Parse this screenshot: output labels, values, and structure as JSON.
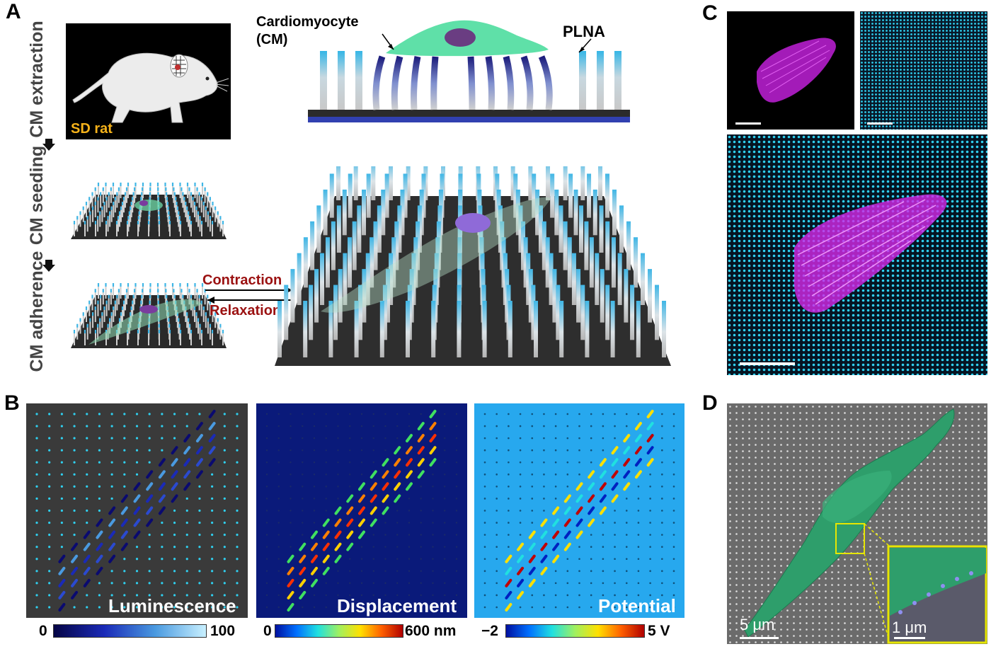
{
  "panels": {
    "a": "A",
    "b": "B",
    "c": "C",
    "d": "D"
  },
  "panel_a": {
    "steps": [
      "CM extraction",
      "CM seeding",
      "CM adherence"
    ],
    "rat_label": "SD rat",
    "cell_label_line1": "Cardiomyocyte",
    "cell_label_line2": "(CM)",
    "plna_label": "PLNA",
    "contraction": "Contraction",
    "relaxation": "Relaxation"
  },
  "panel_b": {
    "maps": [
      {
        "label": "Luminescence",
        "cbar_min": "0",
        "cbar_max": "100"
      },
      {
        "label": "Displacement",
        "cbar_min": "0",
        "cbar_max": "600 nm"
      },
      {
        "label": "Potential",
        "cbar_min": "−2",
        "cbar_max": "5 V"
      }
    ]
  },
  "panel_d": {
    "scale_main": "5 μm",
    "scale_inset": "1 μm"
  },
  "colors": {
    "pillar_top": "#3fb6e6",
    "cell_green": "#5fe0a8",
    "nucleus": "#6a3d82",
    "arrow_red": "#9b1111",
    "sem_green": "#2e9e6b",
    "inset_border": "#e6e600",
    "magenta": "#d428e8",
    "dot_cyan": "#2fd0f0"
  }
}
